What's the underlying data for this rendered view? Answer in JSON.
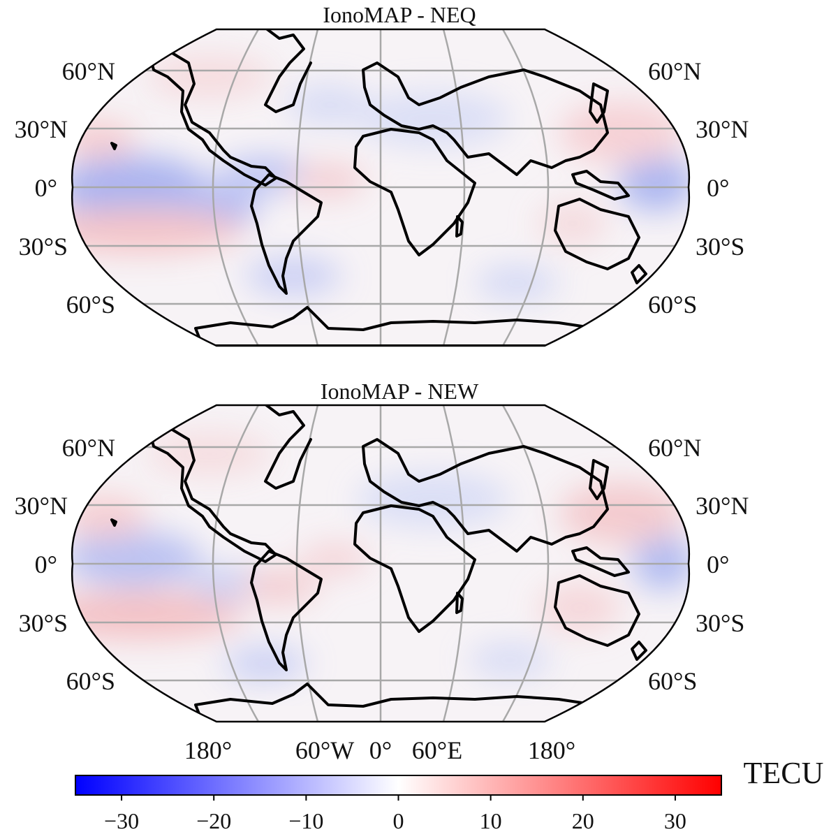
{
  "panels": [
    {
      "title": "IonoMAP - NEQ",
      "lat_labels_left": [
        "60°N",
        "30°N",
        "0°",
        "30°S",
        "60°S"
      ],
      "lat_labels_right": [
        "60°N",
        "30°N",
        "0°",
        "30°S",
        "60°S"
      ]
    },
    {
      "title": "IonoMAP - NEW",
      "lat_labels_left": [
        "60°N",
        "30°N",
        "0°",
        "30°S",
        "60°S"
      ],
      "lat_labels_right": [
        "60°N",
        "30°N",
        "0°",
        "30°S",
        "60°S"
      ]
    }
  ],
  "lon_labels": [
    "180°",
    "60°W",
    "0°",
    "60°E",
    "180°"
  ],
  "colorbar": {
    "label": "TECU",
    "min": -35,
    "max": 35,
    "ticks": [
      -30,
      -20,
      -10,
      0,
      10,
      20,
      30
    ],
    "tick_labels": [
      "−30",
      "−20",
      "−10",
      "0",
      "10",
      "20",
      "30"
    ],
    "colors": {
      "negative": "#0000ff",
      "zero": "#ffffff",
      "positive": "#ff0000"
    }
  },
  "map": {
    "projection": "Robinson",
    "graticule_lon_step": 60,
    "graticule_lat_step": 30,
    "colormap": "bwr"
  }
}
